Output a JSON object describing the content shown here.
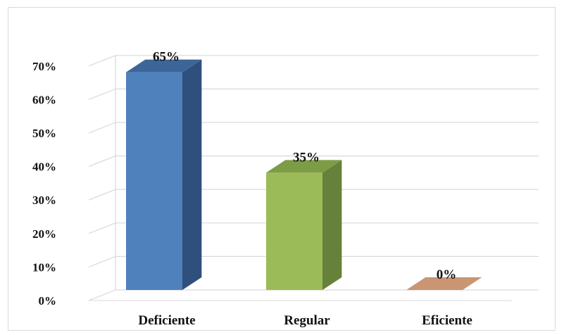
{
  "chart_data": {
    "type": "bar",
    "style": "3d",
    "categories": [
      "Deficiente",
      "Regular",
      "Eficiente"
    ],
    "values": [
      65,
      35,
      0
    ],
    "data_labels": [
      "65%",
      "35%",
      "0%"
    ],
    "ytick_labels": [
      "0%",
      "10%",
      "20%",
      "30%",
      "40%",
      "50%",
      "60%",
      "70%"
    ],
    "ylim": [
      0,
      70
    ],
    "grid": true,
    "colors": {
      "Deficiente": {
        "front": "#4f81bd",
        "side": "#2f4f7c",
        "top": "#3d6698"
      },
      "Regular": {
        "front": "#9bbb59",
        "side": "#66813a",
        "top": "#7d9c46"
      },
      "Eficiente": {
        "front": "#c0906a",
        "side": "#a06f4e",
        "top": "#c99573"
      }
    },
    "gridline_color": "#d9d9d9"
  }
}
